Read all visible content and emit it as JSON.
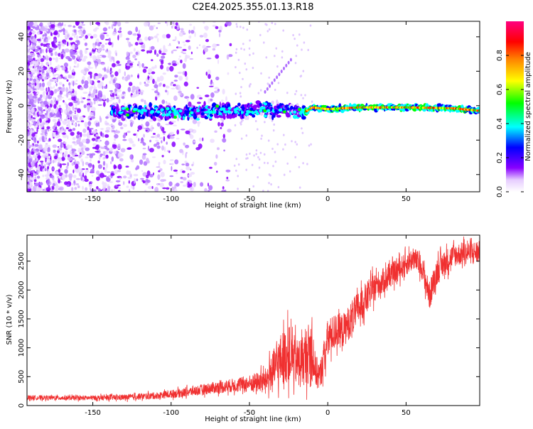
{
  "title": "C2E4.2025.355.01.13.R18",
  "chart_data": [
    {
      "type": "heatmap",
      "title": "C2E4.2025.355.01.13.R18",
      "xlabel": "Height of straight line (km)",
      "ylabel": "Frequency (Hz)",
      "xlim": [
        -192,
        97
      ],
      "ylim": [
        -50,
        49
      ],
      "xticks": [
        -150,
        -100,
        -50,
        0,
        50
      ],
      "yticks": [
        -40,
        -20,
        0,
        20,
        40
      ],
      "colorbar": {
        "label": "Normalized spectral amplitude",
        "range": [
          0,
          1
        ],
        "ticks": [
          0,
          0.2,
          0.4,
          0.6,
          0.8
        ],
        "tick_labels": [
          "0.0",
          "0.2",
          "0.4",
          "0.6",
          "0.8"
        ]
      },
      "center_line": {
        "x": [
          -135,
          -100,
          -60,
          -25,
          -15,
          -10,
          0,
          20,
          50,
          80,
          97
        ],
        "y": [
          -3,
          -4,
          -3,
          -2,
          -4,
          -1,
          -2,
          -1,
          -1,
          -1.5,
          -3
        ]
      }
    },
    {
      "type": "line",
      "xlabel": "Height of straight line (km)",
      "ylabel": "SNR (10 * v/v)",
      "xlim": [
        -192,
        97
      ],
      "ylim": [
        0,
        2950
      ],
      "xticks": [
        -150,
        -100,
        -50,
        0,
        50
      ],
      "yticks": [
        0,
        500,
        1000,
        1500,
        2000,
        2500
      ],
      "color": "#f03030",
      "series": [
        {
          "name": "SNR",
          "x": [
            -192,
            -160,
            -130,
            -110,
            -90,
            -75,
            -60,
            -50,
            -40,
            -35,
            -30,
            -25,
            -20,
            -15,
            -10,
            -8,
            -5,
            0,
            5,
            10,
            15,
            20,
            30,
            40,
            50,
            55,
            60,
            65,
            70,
            80,
            90,
            97
          ],
          "mean": [
            140,
            130,
            140,
            170,
            230,
            300,
            350,
            380,
            430,
            600,
            800,
            900,
            750,
            800,
            1000,
            600,
            500,
            1150,
            1300,
            1300,
            1500,
            1700,
            2050,
            2250,
            2450,
            2550,
            2400,
            1900,
            2350,
            2600,
            2650,
            2650
          ],
          "noise": [
            40,
            40,
            50,
            60,
            80,
            100,
            120,
            150,
            200,
            350,
            450,
            500,
            400,
            450,
            600,
            300,
            250,
            350,
            300,
            300,
            300,
            300,
            250,
            200,
            200,
            200,
            200,
            250,
            250,
            200,
            200,
            200
          ]
        }
      ]
    }
  ]
}
